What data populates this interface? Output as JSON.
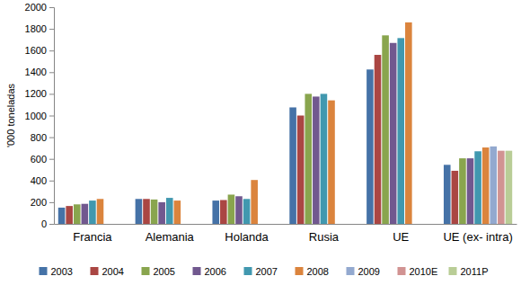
{
  "chart_data": {
    "type": "bar",
    "y_label": "'000 toneladas",
    "categories": [
      "Francia",
      "Alemania",
      "Holanda",
      "Rusia",
      "UE",
      "UE (ex- intra)"
    ],
    "series": [
      {
        "name": "2003",
        "color": "#4572A7",
        "values": [
          150,
          230,
          215,
          1075,
          1425,
          545
        ]
      },
      {
        "name": "2004",
        "color": "#AA4643",
        "values": [
          165,
          230,
          220,
          1000,
          1560,
          490
        ]
      },
      {
        "name": "2005",
        "color": "#89A54E",
        "values": [
          180,
          225,
          270,
          1200,
          1740,
          605
        ]
      },
      {
        "name": "2006",
        "color": "#71588F",
        "values": [
          185,
          200,
          255,
          1175,
          1670,
          605
        ]
      },
      {
        "name": "2007",
        "color": "#4198AF",
        "values": [
          215,
          240,
          230,
          1200,
          1715,
          670
        ]
      },
      {
        "name": "2008",
        "color": "#DB843D",
        "values": [
          230,
          215,
          405,
          1140,
          1860,
          705
        ]
      },
      {
        "name": "2009",
        "color": "#93A9CF",
        "values": [
          null,
          null,
          null,
          null,
          null,
          715
        ]
      },
      {
        "name": "2010E",
        "color": "#D19392",
        "values": [
          null,
          null,
          null,
          null,
          null,
          675
        ]
      },
      {
        "name": "2011P",
        "color": "#B9CD96",
        "values": [
          null,
          null,
          null,
          null,
          null,
          675
        ]
      }
    ],
    "ylim": [
      0,
      2000
    ],
    "yticks": [
      0,
      200,
      400,
      600,
      800,
      1000,
      1200,
      1400,
      1600,
      1800,
      2000
    ],
    "grid": false,
    "legend": "bottom"
  }
}
